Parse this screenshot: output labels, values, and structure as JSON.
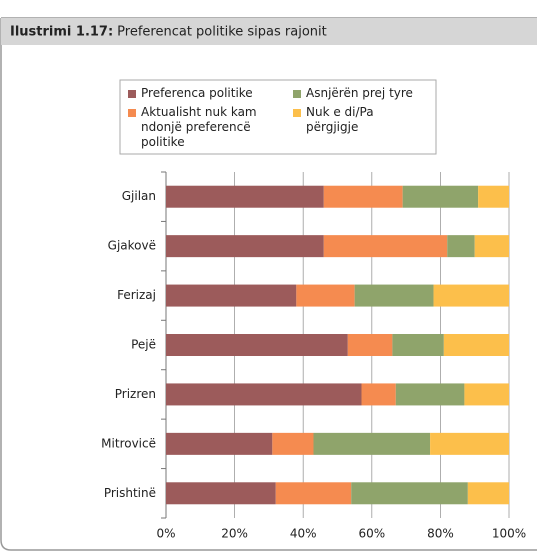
{
  "chart_data": {
    "type": "stacked_bar_horizontal",
    "title_label": "Ilustrimi 1.17:",
    "title": "Preferencat politike sipas rajonit",
    "categories": [
      "Gjilan",
      "Gjakovë",
      "Ferizaj",
      "Pejë",
      "Prizren",
      "Mitrovicë",
      "Prishtinë"
    ],
    "series": [
      {
        "name": "Preferenca politike",
        "color": "#9c5b5b",
        "values": [
          46,
          46,
          38,
          53,
          57,
          31,
          32
        ]
      },
      {
        "name": "Aktualisht nuk kam ndonjë preferencë politike",
        "color": "#f58b50",
        "values": [
          23,
          36,
          17,
          13,
          10,
          12,
          22
        ]
      },
      {
        "name": "Asnjërën prej tyre",
        "color": "#8fa46b",
        "values": [
          22,
          8,
          23,
          15,
          20,
          34,
          34
        ]
      },
      {
        "name": "Nuk e di/Pa përgjigje",
        "color": "#fcbf4b",
        "values": [
          9,
          10,
          22,
          19,
          13,
          23,
          12
        ]
      }
    ],
    "xlim": [
      0,
      100
    ],
    "xticks": [
      {
        "value": 0,
        "label": "0%"
      },
      {
        "value": 20,
        "label": "20%"
      },
      {
        "value": 40,
        "label": "40%"
      },
      {
        "value": 60,
        "label": "60%"
      },
      {
        "value": 80,
        "label": "80%"
      },
      {
        "value": 100,
        "label": "100%"
      }
    ],
    "grid": true
  }
}
